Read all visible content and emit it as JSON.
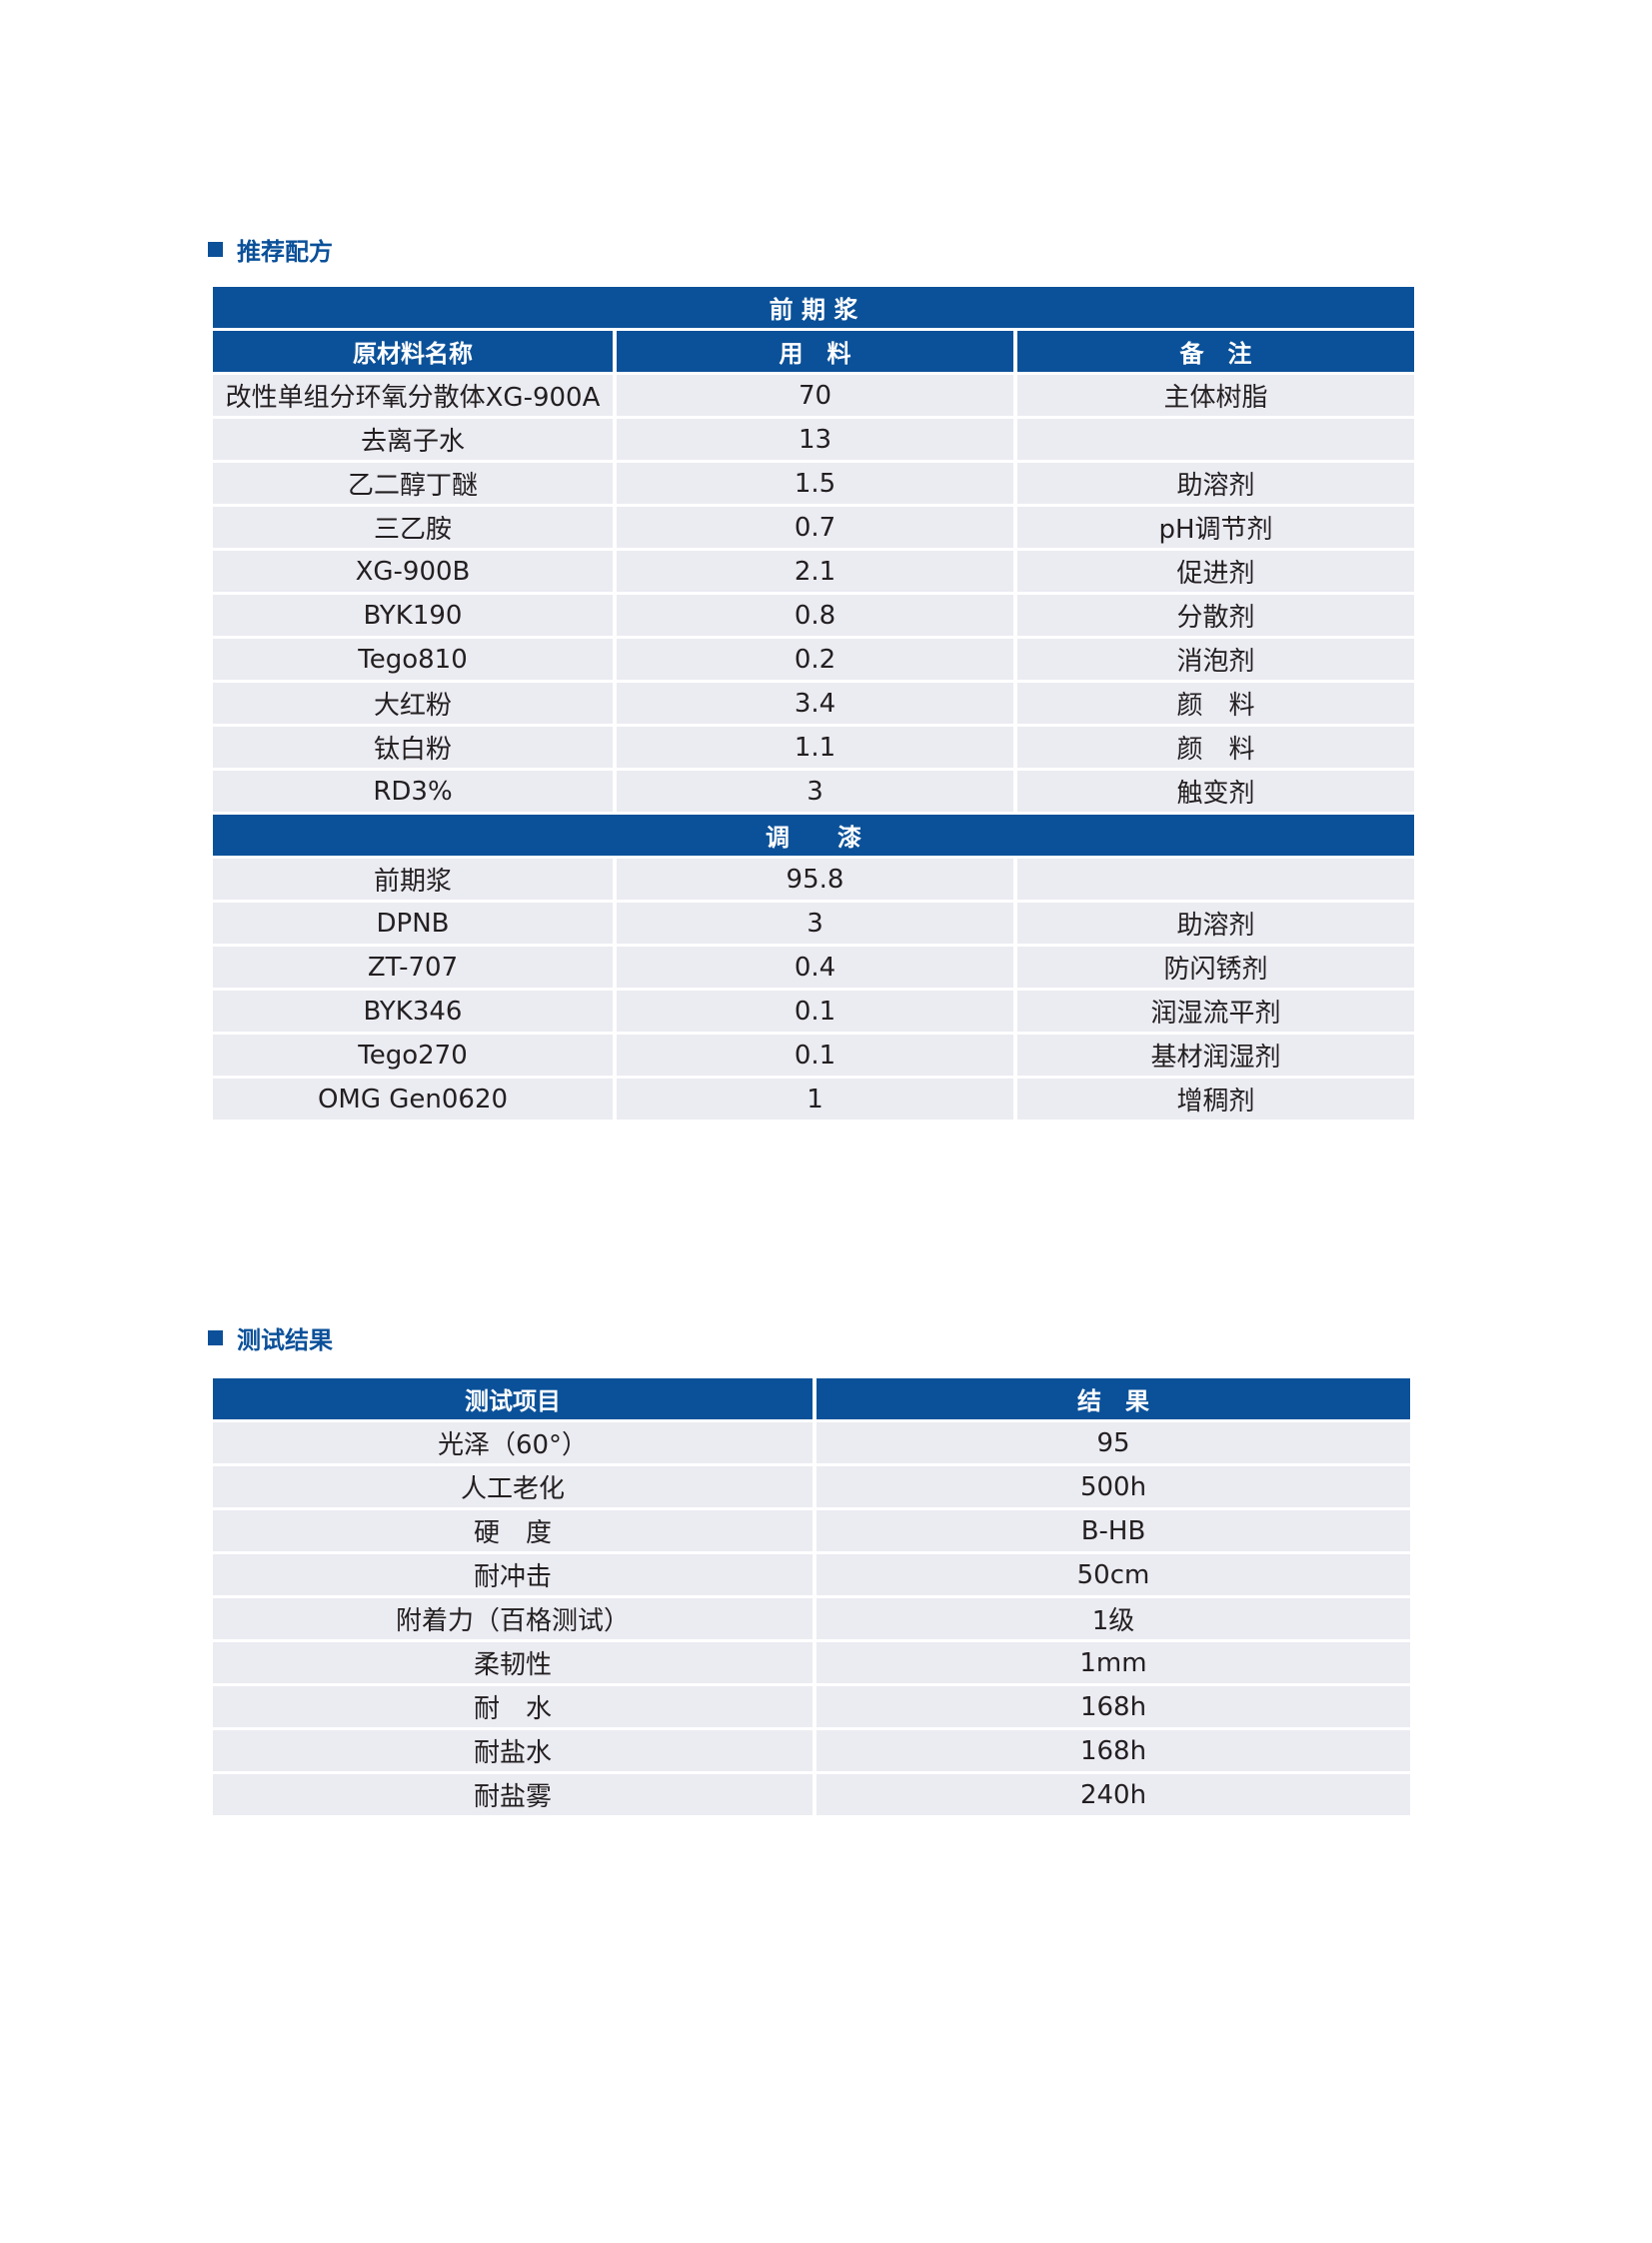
{
  "formula": {
    "title": "推荐配方",
    "section1_header": "前 期 浆",
    "columns": [
      "原材料名称",
      "用　料",
      "备　注"
    ],
    "section1_rows": [
      [
        "改性单组分环氧分散体XG-900A",
        "70",
        "主体树脂"
      ],
      [
        "去离子水",
        "13",
        ""
      ],
      [
        "乙二醇丁醚",
        "1.5",
        "助溶剂"
      ],
      [
        "三乙胺",
        "0.7",
        "pH调节剂"
      ],
      [
        "XG-900B",
        "2.1",
        "促进剂"
      ],
      [
        "BYK190",
        "0.8",
        "分散剂"
      ],
      [
        "Tego810",
        "0.2",
        "消泡剂"
      ],
      [
        "大红粉",
        "3.4",
        "颜　料"
      ],
      [
        "钛白粉",
        "1.1",
        "颜　料"
      ],
      [
        "RD3%",
        "3",
        "触变剂"
      ]
    ],
    "section2_header": "调　　漆",
    "section2_rows": [
      [
        "前期浆",
        "95.8",
        ""
      ],
      [
        "DPNB",
        "3",
        "助溶剂"
      ],
      [
        "ZT-707",
        "0.4",
        "防闪锈剂"
      ],
      [
        "BYK346",
        "0.1",
        "润湿流平剂"
      ],
      [
        "Tego270",
        "0.1",
        "基材润湿剂"
      ],
      [
        "OMG Gen0620",
        "1",
        "增稠剂"
      ]
    ]
  },
  "results": {
    "title": "测试结果",
    "columns": [
      "测试项目",
      "结　果"
    ],
    "rows": [
      [
        "光泽（60°）",
        "95"
      ],
      [
        "人工老化",
        "500h"
      ],
      [
        "硬　度",
        "B-HB"
      ],
      [
        "耐冲击",
        "50cm"
      ],
      [
        "附着力（百格测试）",
        "1级"
      ],
      [
        "柔韧性",
        "1mm"
      ],
      [
        "耐　水",
        "168h"
      ],
      [
        "耐盐水",
        "168h"
      ],
      [
        "耐盐雾",
        "240h"
      ]
    ]
  }
}
